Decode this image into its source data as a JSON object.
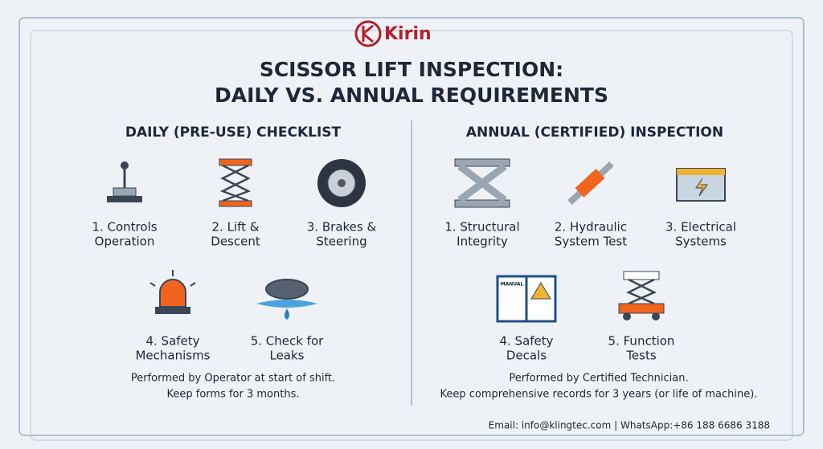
{
  "brand": "Kirin",
  "title": [
    "SCISSOR LIFT INSPECTION:",
    "DAILY VS. ANNUAL REQUIREMENTS"
  ],
  "daily": {
    "heading": "DAILY (PRE-USE) CHECKLIST",
    "items": [
      {
        "label": [
          "1. Controls",
          "Operation"
        ]
      },
      {
        "label": [
          "2. Lift &",
          "Descent"
        ]
      },
      {
        "label": [
          "3. Brakes &",
          "Steering"
        ]
      },
      {
        "label": [
          "4. Safety",
          "Mechanisms"
        ]
      },
      {
        "label": [
          "5. Check for",
          "Leaks"
        ]
      }
    ],
    "note": [
      "Performed by Operator at start of shift.",
      "Keep forms for 3 months."
    ]
  },
  "annual": {
    "heading": "ANNUAL (CERTIFIED) INSPECTION",
    "items": [
      {
        "label": [
          "1. Structural",
          "Integrity"
        ]
      },
      {
        "label": [
          "2. Hydraulic",
          "System Test"
        ]
      },
      {
        "label": [
          "3. Electrical",
          "Systems"
        ]
      },
      {
        "label": [
          "4. Safety",
          "Decals"
        ],
        "icon_text": "MANUAL"
      },
      {
        "label": [
          "5. Function",
          "Tests"
        ]
      }
    ],
    "note": [
      "Performed by Certified Technician.",
      "Keep comprehensive records for 3 years (or life of machine)."
    ]
  },
  "contact": "Email: info@klingtec.com | WhatsApp:+86 188 6686 3188"
}
